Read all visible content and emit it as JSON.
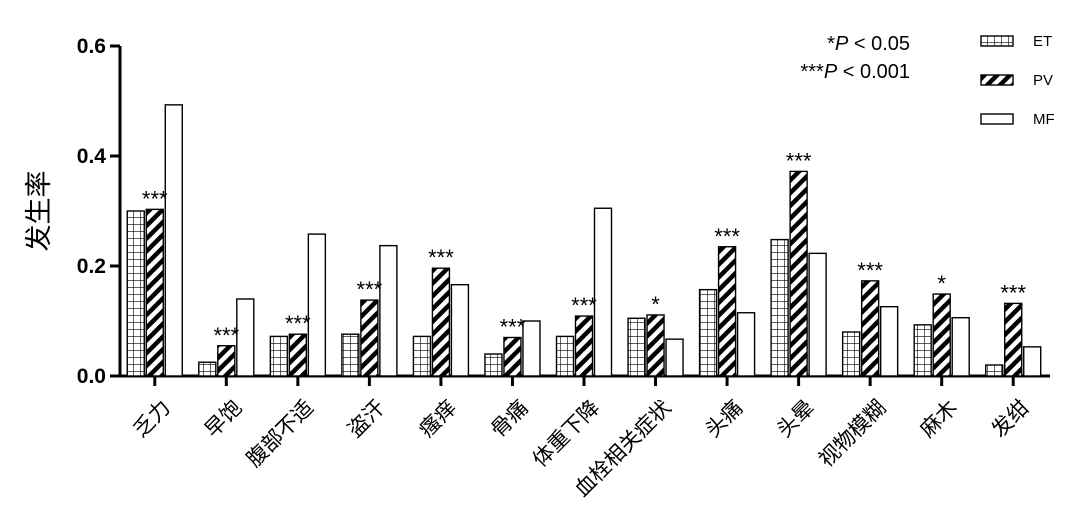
{
  "chart_data": {
    "type": "bar",
    "ylabel": "发生率",
    "xlabel": "",
    "ylim": [
      0,
      0.6
    ],
    "yticks": [
      "0.0",
      "0.2",
      "0.4",
      "0.6"
    ],
    "categories": [
      "乏力",
      "早饱",
      "腹部不适",
      "盗汗",
      "瘙痒",
      "骨痛",
      "体重下降",
      "血栓相关症状",
      "头痛",
      "头晕",
      "视物模糊",
      "麻木",
      "发绀"
    ],
    "series": [
      {
        "name": "ET",
        "pattern": "grid",
        "values": [
          0.3,
          0.025,
          0.072,
          0.076,
          0.072,
          0.04,
          0.072,
          0.105,
          0.157,
          0.248,
          0.08,
          0.093,
          0.02
        ]
      },
      {
        "name": "PV",
        "pattern": "diagonal",
        "values": [
          0.303,
          0.055,
          0.076,
          0.138,
          0.196,
          0.07,
          0.109,
          0.111,
          0.235,
          0.372,
          0.173,
          0.149,
          0.132
        ]
      },
      {
        "name": "MF",
        "pattern": "empty",
        "values": [
          0.493,
          0.14,
          0.258,
          0.237,
          0.166,
          0.1,
          0.305,
          0.067,
          0.115,
          0.223,
          0.126,
          0.106,
          0.053
        ]
      }
    ],
    "significance": [
      "***",
      "***",
      "***",
      "***",
      "***",
      "***",
      "***",
      "*",
      "***",
      "***",
      "***",
      "*",
      "***"
    ],
    "annotations": [
      {
        "prefix": "*",
        "italic": "P",
        "suffix": " < 0.05"
      },
      {
        "prefix": "***",
        "italic": "P",
        "suffix": " < 0.001"
      }
    ],
    "legend_position": "top-right",
    "grid": false
  }
}
